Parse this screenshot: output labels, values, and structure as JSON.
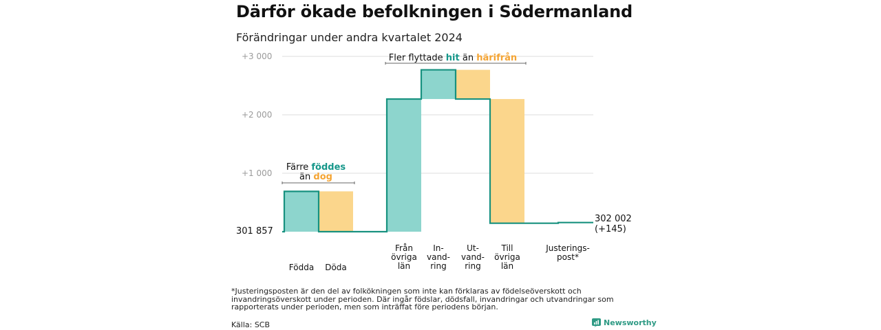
{
  "title": "Därför ökade befolkningen i Södermanland",
  "subtitle": "Förändringar under andra kvartalet 2024",
  "colors": {
    "teal": "#8dd5cd",
    "teal_line": "#17917f",
    "teal_text": "#16978a",
    "orange": "#fbd68c",
    "orange_text": "#f4a433",
    "grid": "#dddddd"
  },
  "chart_data": {
    "type": "waterfall",
    "start_value": 301857,
    "start_label": "301  857",
    "ylim": [
      -40,
      3000
    ],
    "yticks": [
      {
        "value": 1000,
        "label": "+1  000"
      },
      {
        "value": 2000,
        "label": "+2  000"
      },
      {
        "value": 3000,
        "label": "+3  000"
      }
    ],
    "categories": [
      {
        "label": [
          "Födda"
        ],
        "delta": 690,
        "kind": "increase"
      },
      {
        "label": [
          "Döda"
        ],
        "delta": -690,
        "kind": "decrease"
      },
      {
        "label": [
          "Från",
          "övriga",
          "län"
        ],
        "delta": 2270,
        "kind": "increase"
      },
      {
        "label": [
          "In-",
          "vand-",
          "ring"
        ],
        "delta": 500,
        "kind": "increase"
      },
      {
        "label": [
          "Ut-",
          "vand-",
          "ring"
        ],
        "delta": -500,
        "kind": "decrease"
      },
      {
        "label": [
          "Till",
          "övriga",
          "län"
        ],
        "delta": -2125,
        "kind": "decrease"
      },
      {
        "label": [
          "Justerings-",
          "post*"
        ],
        "delta": 0,
        "kind": "adjustment"
      }
    ],
    "end_value_label": "302 002",
    "end_change_label": "(+145)",
    "annotations": [
      {
        "id": "births",
        "parts": [
          [
            "Färre ",
            "normal"
          ],
          [
            "föddes",
            "teal"
          ]
        ],
        "parts2": [
          [
            "än ",
            "normal"
          ],
          [
            "dog",
            "orange"
          ]
        ]
      },
      {
        "id": "moves",
        "parts": [
          [
            "Fler flyttade ",
            "normal"
          ],
          [
            "hit",
            "teal"
          ],
          [
            " än ",
            "normal"
          ],
          [
            "härifrån",
            "orange"
          ]
        ]
      }
    ]
  },
  "footnote": "*Justeringsposten är den del av folkökningen som inte kan förklaras av födelseöverskott och invandringsöverskott under perioden. Där ingår födslar, dödsfall, invandringar och utvandringar som rapporterats under perioden, men som inträffat före periodens början.",
  "source": "Källa: SCB",
  "brand": "Newsworthy"
}
